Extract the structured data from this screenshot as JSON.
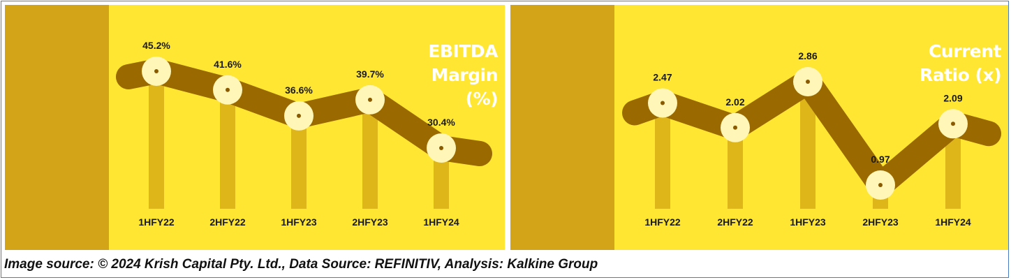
{
  "chart_data": [
    {
      "type": "line",
      "title": "EBITDA Margin (%)",
      "title_lines": [
        "EBITDA",
        "Margin (%)"
      ],
      "categories": [
        "1HFY22",
        "2HFY22",
        "1HFY23",
        "2HFY23",
        "1HFY24"
      ],
      "values": [
        45.2,
        41.6,
        36.6,
        39.7,
        30.4
      ],
      "value_labels": [
        "45.2%",
        "41.6%",
        "36.6%",
        "39.7%",
        "30.4%"
      ],
      "ylim": [
        20,
        55
      ],
      "grid": false,
      "colors": {
        "line": "#9a6a00",
        "drop": "#d9ad16",
        "marker": "#fff6b8",
        "band": "#d4a418",
        "background": "#ffe633"
      }
    },
    {
      "type": "line",
      "title": "Current Ratio (x)",
      "title_lines": [
        "Current",
        "Ratio (x)"
      ],
      "categories": [
        "1HFY22",
        "2HFY22",
        "1HFY23",
        "2HFY23",
        "1HFY24"
      ],
      "values": [
        2.47,
        2.02,
        2.86,
        0.97,
        2.09
      ],
      "value_labels": [
        "2.47",
        "2.02",
        "2.86",
        "0.97",
        "2.09"
      ],
      "ylim": [
        0,
        3.6
      ],
      "grid": false,
      "colors": {
        "line": "#9a6a00",
        "drop": "#d9ad16",
        "marker": "#fff6b8",
        "band": "#d4a418",
        "background": "#ffe633"
      }
    }
  ],
  "caption": "Image source: © 2024 Krish Capital Pty. Ltd., Data Source: REFINITIV, Analysis: Kalkine Group"
}
